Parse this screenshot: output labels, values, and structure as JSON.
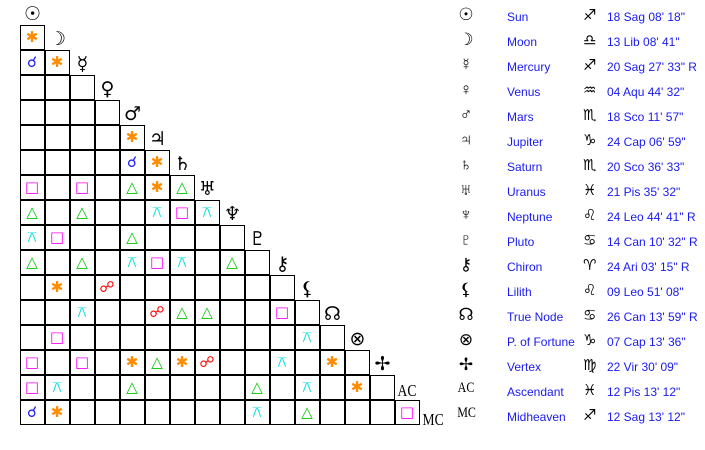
{
  "bodies": [
    {
      "name": "Sun",
      "glyph": "☉",
      "sign": "♐",
      "position": "18 Sag 08' 18\""
    },
    {
      "name": "Moon",
      "glyph": "☽",
      "sign": "♎",
      "position": "13 Lib 08' 41\""
    },
    {
      "name": "Mercury",
      "glyph": "☿",
      "sign": "♐",
      "position": "20 Sag 27' 33\" R"
    },
    {
      "name": "Venus",
      "glyph": "♀",
      "sign": "♒",
      "position": "04 Aqu 44' 32\""
    },
    {
      "name": "Mars",
      "glyph": "♂",
      "sign": "♏",
      "position": "18 Sco 11' 57\""
    },
    {
      "name": "Jupiter",
      "glyph": "♃",
      "sign": "♑",
      "position": "24 Cap 06' 59\""
    },
    {
      "name": "Saturn",
      "glyph": "♄",
      "sign": "♏",
      "position": "20 Sco 36' 33\""
    },
    {
      "name": "Uranus",
      "glyph": "♅",
      "sign": "♓",
      "position": "21 Pis 35' 32\""
    },
    {
      "name": "Neptune",
      "glyph": "♆",
      "sign": "♌",
      "position": "24 Leo 44' 41\" R"
    },
    {
      "name": "Pluto",
      "glyph": "♇",
      "sign": "♋",
      "position": "14 Can 10' 32\" R"
    },
    {
      "name": "Chiron",
      "glyph": "⚷",
      "sign": "♈",
      "position": "24 Ari 03' 15\" R"
    },
    {
      "name": "Lilith",
      "glyph": "⚸",
      "sign": "♌",
      "position": "09 Leo 51' 08\""
    },
    {
      "name": "True Node",
      "glyph": "☊",
      "sign": "♋",
      "position": "26 Can 13' 59\" R"
    },
    {
      "name": "P. of Fortune",
      "glyph": "⊗",
      "sign": "♑",
      "position": "07 Cap 13' 36\""
    },
    {
      "name": "Vertex",
      "glyph": "✢",
      "sign": "♍",
      "position": "22 Vir 30' 09\""
    },
    {
      "name": "Ascendant",
      "glyph": "AC",
      "sign": "♓",
      "position": "12 Pis 13' 12\""
    },
    {
      "name": "Midheaven",
      "glyph": "MC",
      "sign": "♐",
      "position": "12 Sag 13' 12\""
    }
  ],
  "aspect_types": {
    "c": {
      "name": "conjunction",
      "glyph": "☌",
      "color": "#1a1aff"
    },
    "s": {
      "name": "sextile",
      "glyph": "✱",
      "color": "#ff8c00"
    },
    "q": {
      "name": "square",
      "glyph": "□",
      "color": "#ff00ff"
    },
    "t": {
      "name": "trine",
      "glyph": "△",
      "color": "#00c800"
    },
    "x": {
      "name": "quincunx",
      "glyph": "⚻",
      "color": "#00dede"
    },
    "o": {
      "name": "opposition",
      "glyph": "☍",
      "color": "#ff0000"
    }
  },
  "aspects": [
    "s",
    "cs",
    "...",
    "....",
    "....s",
    "....cs",
    "q.q.tst",
    "t.t..xqx",
    "xq..t....",
    "t.t.xqx.t.",
    ".s.o.......",
    "..x..ott..q.",
    ".q.........x.",
    "q.q.stso..x.s.",
    "qx..t....t.x.s.",
    "cs.......x.t...q"
  ]
}
